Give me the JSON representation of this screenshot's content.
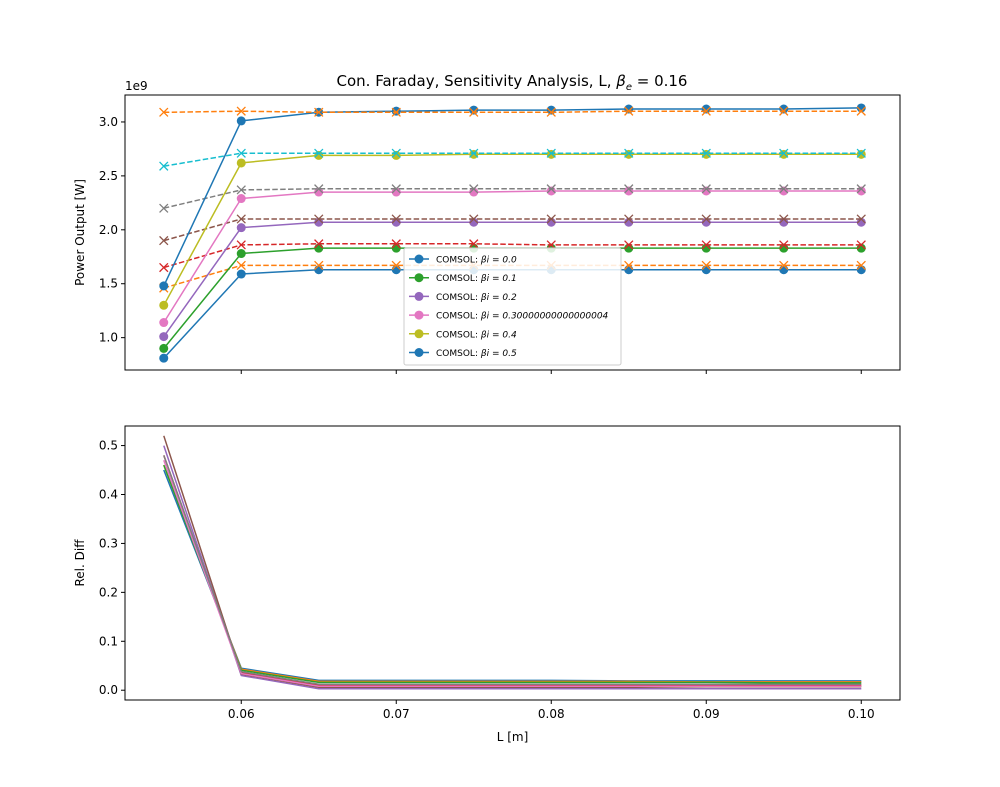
{
  "figure": {
    "title_prefix": "Con. Faraday, Sensitivity Analysis, L, ",
    "title_math": "β",
    "title_sub": "e",
    "title_suffix": " = 0.16"
  },
  "chart_data": [
    {
      "type": "line",
      "title": "Con. Faraday, Sensitivity Analysis, L, βe = 0.16",
      "xlabel": "",
      "ylabel": "Power Output [W]",
      "offset_text": "1e9",
      "xlim": [
        0.0525,
        0.1025
      ],
      "ylim": [
        0.7,
        3.25
      ],
      "xticks": [
        0.06,
        0.07,
        0.08,
        0.09,
        0.1
      ],
      "xtick_labels_visible": false,
      "yticks": [
        1.0,
        1.5,
        2.0,
        2.5,
        3.0
      ],
      "ytick_labels": [
        "1.0",
        "1.5",
        "2.0",
        "2.5",
        "3.0"
      ],
      "grid": false,
      "legend": {
        "placement": "center-bottom",
        "font_size": "small"
      },
      "x": [
        0.055,
        0.06,
        0.065,
        0.07,
        0.075,
        0.08,
        0.085,
        0.09,
        0.095,
        0.1
      ],
      "comsol_series": [
        {
          "name": "COMSOL: ",
          "beta_label": "βi = 0.0",
          "color": "#1f77b4",
          "values": [
            0.81,
            1.59,
            1.63,
            1.63,
            1.63,
            1.63,
            1.63,
            1.63,
            1.63,
            1.63
          ]
        },
        {
          "name": "COMSOL: ",
          "beta_label": "βi = 0.1",
          "color": "#2ca02c",
          "values": [
            0.9,
            1.78,
            1.83,
            1.83,
            1.83,
            1.83,
            1.83,
            1.83,
            1.83,
            1.83
          ]
        },
        {
          "name": "COMSOL: ",
          "beta_label": "βi = 0.2",
          "color": "#9467bd",
          "values": [
            1.01,
            2.02,
            2.07,
            2.07,
            2.07,
            2.07,
            2.07,
            2.07,
            2.07,
            2.07
          ]
        },
        {
          "name": "COMSOL: ",
          "beta_label": "βi = 0.30000000000000004",
          "color": "#e377c2",
          "values": [
            1.14,
            2.29,
            2.35,
            2.35,
            2.35,
            2.36,
            2.36,
            2.36,
            2.36,
            2.36
          ]
        },
        {
          "name": "COMSOL: ",
          "beta_label": "βi = 0.4",
          "color": "#bcbd22",
          "values": [
            1.3,
            2.62,
            2.69,
            2.69,
            2.7,
            2.7,
            2.7,
            2.7,
            2.7,
            2.7
          ]
        },
        {
          "name": "COMSOL: ",
          "beta_label": "βi = 0.5",
          "color": "#1f77b4",
          "values": [
            1.48,
            3.01,
            3.09,
            3.1,
            3.11,
            3.11,
            3.12,
            3.12,
            3.12,
            3.13
          ]
        }
      ],
      "model_series": [
        {
          "color": "#ff7f0e",
          "values": [
            1.46,
            1.67,
            1.67,
            1.67,
            1.67,
            1.67,
            1.67,
            1.67,
            1.67,
            1.67
          ]
        },
        {
          "color": "#d62728",
          "values": [
            1.65,
            1.86,
            1.87,
            1.87,
            1.87,
            1.86,
            1.86,
            1.86,
            1.86,
            1.86
          ]
        },
        {
          "color": "#8c564b",
          "values": [
            1.9,
            2.1,
            2.1,
            2.1,
            2.1,
            2.1,
            2.1,
            2.1,
            2.1,
            2.1
          ]
        },
        {
          "color": "#7f7f7f",
          "values": [
            2.2,
            2.37,
            2.38,
            2.38,
            2.38,
            2.38,
            2.38,
            2.38,
            2.38,
            2.38
          ]
        },
        {
          "color": "#17becf",
          "values": [
            2.59,
            2.71,
            2.71,
            2.71,
            2.71,
            2.71,
            2.71,
            2.71,
            2.71,
            2.71
          ]
        },
        {
          "color": "#ff7f0e",
          "values": [
            3.09,
            3.1,
            3.09,
            3.09,
            3.09,
            3.09,
            3.1,
            3.1,
            3.1,
            3.1
          ]
        }
      ]
    },
    {
      "type": "line",
      "title": "",
      "xlabel": "L [m]",
      "ylabel": "Rel. Diff",
      "xlim": [
        0.0525,
        0.1025
      ],
      "ylim": [
        -0.02,
        0.54
      ],
      "xticks": [
        0.06,
        0.07,
        0.08,
        0.09,
        0.1
      ],
      "xtick_labels": [
        "0.06",
        "0.07",
        "0.08",
        "0.09",
        "0.10"
      ],
      "yticks": [
        0.0,
        0.1,
        0.2,
        0.3,
        0.4,
        0.5
      ],
      "ytick_labels": [
        "0.0",
        "0.1",
        "0.2",
        "0.3",
        "0.4",
        "0.5"
      ],
      "grid": false,
      "x": [
        0.055,
        0.06,
        0.065,
        0.07,
        0.075,
        0.08,
        0.085,
        0.09,
        0.095,
        0.1
      ],
      "series": [
        {
          "color": "#1f77b4",
          "values": [
            0.45,
            0.045,
            0.02,
            0.02,
            0.02,
            0.02,
            0.019,
            0.019,
            0.019,
            0.019
          ]
        },
        {
          "color": "#ff7f0e",
          "values": [
            0.46,
            0.043,
            0.018,
            0.018,
            0.018,
            0.018,
            0.018,
            0.017,
            0.017,
            0.017
          ]
        },
        {
          "color": "#2ca02c",
          "values": [
            0.46,
            0.041,
            0.016,
            0.016,
            0.016,
            0.016,
            0.016,
            0.016,
            0.015,
            0.015
          ]
        },
        {
          "color": "#d62728",
          "values": [
            0.48,
            0.036,
            0.01,
            0.01,
            0.01,
            0.01,
            0.01,
            0.01,
            0.01,
            0.01
          ]
        },
        {
          "color": "#9467bd",
          "values": [
            0.5,
            0.03,
            0.003,
            0.003,
            0.003,
            0.003,
            0.003,
            0.003,
            0.003,
            0.003
          ]
        },
        {
          "color": "#8c564b",
          "values": [
            0.52,
            0.033,
            0.006,
            0.006,
            0.006,
            0.006,
            0.006,
            0.007,
            0.007,
            0.007
          ]
        },
        {
          "color": "#e377c2",
          "values": [
            0.47,
            0.034,
            0.008,
            0.008,
            0.008,
            0.008,
            0.008,
            0.008,
            0.008,
            0.008
          ]
        },
        {
          "color": "#7f7f7f",
          "values": [
            0.48,
            0.038,
            0.012,
            0.012,
            0.012,
            0.012,
            0.012,
            0.012,
            0.012,
            0.012
          ]
        }
      ]
    }
  ]
}
